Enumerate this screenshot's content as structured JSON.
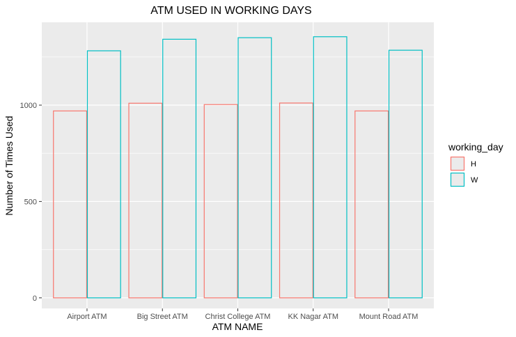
{
  "chart_data": {
    "type": "bar",
    "title": "ATM USED IN WORKING DAYS",
    "xlabel": "ATM NAME",
    "ylabel": "Number of Times Used",
    "categories": [
      "Airport ATM",
      "Big Street ATM",
      "Christ College ATM",
      "KK Nagar ATM",
      "Mount Road ATM"
    ],
    "series": [
      {
        "name": "H",
        "color": "#F8766D",
        "values": [
          970,
          1010,
          1003,
          1011,
          970
        ]
      },
      {
        "name": "W",
        "color": "#00BFC4",
        "values": [
          1282,
          1342,
          1350,
          1355,
          1285
        ]
      }
    ],
    "ylim": [
      -55,
      1430
    ],
    "yticks": [
      0,
      500,
      1000
    ],
    "ytick_labels": [
      "0",
      "500",
      "1000"
    ],
    "legend": {
      "title": "working_day",
      "position": "right"
    },
    "grid": true,
    "panel_background": "#EBEBEB",
    "grid_color": "#FFFFFF"
  }
}
